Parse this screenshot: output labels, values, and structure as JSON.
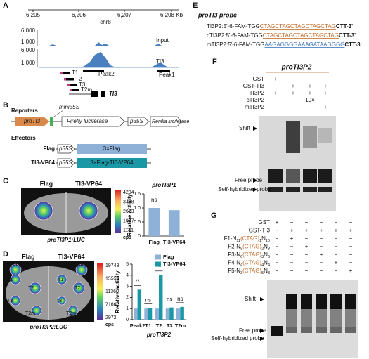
{
  "panel_a": {
    "label": "A",
    "coords": [
      "6,205",
      "6,206",
      "6,207",
      "6,208 Kb"
    ],
    "chrom": "chr8",
    "tracks": [
      {
        "name": "Input",
        "ticks": [
          "6,000",
          "1,000"
        ]
      },
      {
        "name": "TI3",
        "ticks": [
          "6,000",
          "1,000"
        ]
      }
    ],
    "peaks": [
      "Peak2",
      "Peak1"
    ],
    "probes": [
      "T1",
      "T2",
      "T3",
      "T2m"
    ],
    "gene": "TI3"
  },
  "panel_b": {
    "label": "B",
    "reporters": "Reporters",
    "minimal": "mini35S",
    "promoter": "proTI3",
    "firefly": "Firefly luciferase",
    "p35s": "p35S",
    "renilla": "Renilla luciferase",
    "effectors": "Effectors",
    "effector_rows": [
      {
        "name": "Flag",
        "box": "3×Flag"
      },
      {
        "name": "TI3-VP64",
        "box": "3×Flag-TI3-VP64"
      }
    ]
  },
  "panel_c": {
    "label": "C",
    "left": "Flag",
    "right": "TI3-VP64",
    "colorbar": [
      4204,
      3438,
      2673,
      1907,
      1141
    ],
    "unit": "cps",
    "caption": "proTI3P1:LUC"
  },
  "panel_d": {
    "label": "D",
    "left": "Flag",
    "right": "TI3-VP64",
    "spots": [
      "Peak2",
      "T1",
      "T2",
      "T3",
      "T2m"
    ],
    "colorbar": [
      19748,
      15554,
      11360,
      7166,
      2972
    ],
    "unit": "cps",
    "caption": "proTI3P2:LUC"
  },
  "panel_e": {
    "label": "E",
    "title": "proTI3 probe",
    "probes": [
      [
        "TI3P2:5'-6-FAM-TGG",
        "CTAGCTAGCTAGCTAGCTAG",
        "CTT-3'"
      ],
      [
        "cTI3P2:5'-6-FAM-TGG",
        "CTAGCTAGCTAGCTAGCTAG",
        "CTT-3'"
      ],
      [
        "mTI3P2:5'-6-FAM-TGG",
        "AAGAGGGGAAAGATAAGGGG",
        "CTT-3'"
      ]
    ]
  },
  "panel_f": {
    "label": "F",
    "title": "proTI3P2",
    "rows": [
      {
        "name": "GST",
        "signs": [
          "+",
          "−",
          "−",
          "−"
        ]
      },
      {
        "name": "GST-TI3",
        "signs": [
          "−",
          "+",
          "+",
          "+"
        ]
      },
      {
        "name": "TI3P2",
        "signs": [
          "+",
          "+",
          "+",
          "+"
        ]
      },
      {
        "name": "cTI3P2",
        "signs": [
          "−",
          "−",
          "10×",
          "−"
        ]
      },
      {
        "name": "mTI3P2",
        "signs": [
          "−",
          "−",
          "−",
          "+"
        ]
      }
    ],
    "shift": "Shift",
    "free": "Free probe",
    "self": "Self-hybridized probe"
  },
  "panel_g": {
    "label": "G",
    "rows": [
      {
        "name": [
          "GST"
        ],
        "signs": [
          "+",
          "−",
          "−",
          "−",
          "−",
          "−"
        ]
      },
      {
        "name": [
          "GST-TI3"
        ],
        "signs": [
          "−",
          "+",
          "+",
          "+",
          "+",
          "+"
        ]
      },
      {
        "name": [
          "F1-N",
          "11",
          "(CTAG)",
          "1",
          "N",
          "10"
        ],
        "signs": [
          "−",
          "+",
          "−",
          "−",
          "−",
          "−"
        ]
      },
      {
        "name": [
          "F2-N",
          "8",
          "(CTAG)",
          "2",
          "N",
          "8"
        ],
        "signs": [
          "−",
          "−",
          "+",
          "−",
          "−",
          "−"
        ]
      },
      {
        "name": [
          "F3-N",
          "6",
          "(CTAG)",
          "3",
          "N",
          "6"
        ],
        "signs": [
          "−",
          "−",
          "−",
          "+",
          "−",
          "−"
        ]
      },
      {
        "name": [
          "F4-N",
          "4",
          "(CTAG)",
          "4",
          "N",
          "4"
        ],
        "signs": [
          "−",
          "−",
          "−",
          "−",
          "+",
          "−"
        ]
      },
      {
        "name": [
          "F5-N",
          "3",
          "(CTAG)",
          "5",
          "N",
          "3"
        ],
        "signs": [
          "−",
          "−",
          "−",
          "−",
          "−",
          "+"
        ]
      }
    ],
    "shift": "Shift",
    "free": "Free probe",
    "self": "Self-hybridized probe"
  },
  "chart_data": [
    {
      "type": "bar",
      "title": "proTI3P1",
      "y_label": "Relative activity",
      "categories": [
        "Flag",
        "TI3-VP64"
      ],
      "values": [
        1.0,
        0.92
      ],
      "color": "#8fb1d8",
      "ylim": [
        0,
        1.5
      ],
      "yticks": [
        0,
        0.5,
        {
          "value": 1,
          "label": "1.0"
        },
        1.5
      ],
      "annotations": [
        "ns"
      ]
    },
    {
      "type": "bar",
      "x_label": "proTI3P2",
      "y_label": "Relative activity",
      "categories": [
        "Peak2",
        "T1",
        "T2",
        "T3",
        "T2m"
      ],
      "series": [
        {
          "name": "Flag",
          "color": "#8fb1d8",
          "values": [
            1,
            1,
            1,
            1,
            1
          ]
        },
        {
          "name": "TI3-VP64",
          "color": "#1a98a6",
          "values": [
            2.7,
            1.05,
            4.0,
            1.1,
            1.15
          ]
        }
      ],
      "ylim": [
        0,
        5
      ],
      "yticks": [
        0,
        1,
        2,
        3,
        4,
        5
      ],
      "annotations": [
        "**",
        "ns",
        "**",
        "ns",
        "ns"
      ],
      "legend": "upper right"
    }
  ]
}
